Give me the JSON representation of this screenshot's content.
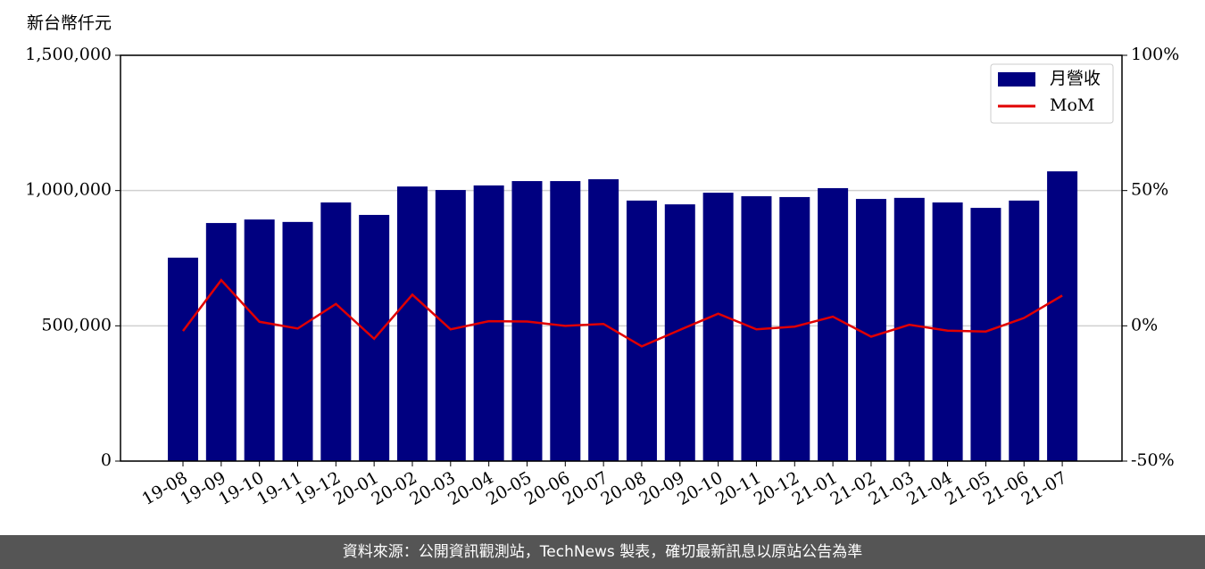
{
  "chart_data": {
    "type": "bar-line",
    "y_label": "新台幣仟元",
    "categories": [
      "19-08",
      "19-09",
      "19-10",
      "19-11",
      "19-12",
      "20-01",
      "20-02",
      "20-03",
      "20-04",
      "20-05",
      "20-06",
      "20-07",
      "20-08",
      "20-09",
      "20-10",
      "20-11",
      "20-12",
      "21-01",
      "21-02",
      "21-03",
      "21-04",
      "21-05",
      "21-06",
      "21-07"
    ],
    "series": [
      {
        "name": "月營收",
        "type": "bar",
        "color": "#000080",
        "values": [
          752000,
          880000,
          893000,
          884000,
          956000,
          910000,
          1015000,
          1002000,
          1019000,
          1035000,
          1035000,
          1042000,
          963000,
          949000,
          992000,
          979000,
          976000,
          1009000,
          969000,
          973000,
          956000,
          936000,
          963000,
          1071000
        ]
      },
      {
        "name": "MoM",
        "type": "line",
        "axis": "y2",
        "color": "#e00000",
        "values": [
          -1.9,
          16.9,
          1.5,
          -1.0,
          8.1,
          -4.8,
          11.5,
          -1.3,
          1.7,
          1.6,
          0.0,
          0.7,
          -7.6,
          -1.5,
          4.5,
          -1.3,
          -0.3,
          3.4,
          -4.0,
          0.4,
          -1.8,
          -2.1,
          2.9,
          11.2
        ]
      }
    ],
    "ylim": [
      0,
      1500000
    ],
    "yticks": [
      0,
      {
        "value": 500000,
        "label": "500,000"
      },
      {
        "value": 1000000,
        "label": "1,000,000"
      },
      {
        "value": 1500000,
        "label": "1,500,000"
      }
    ],
    "y2lim": [
      -50,
      100
    ],
    "y2ticks": [
      {
        "value": -50,
        "label": "-50%"
      },
      {
        "value": 0,
        "label": "0%"
      },
      {
        "value": 50,
        "label": "50%"
      },
      {
        "value": 100,
        "label": "100%"
      }
    ],
    "grid": true,
    "legend": "upper right"
  },
  "footer": "資料來源：公開資訊觀測站，TechNews 製表，確切最新訊息以原站公告為準"
}
